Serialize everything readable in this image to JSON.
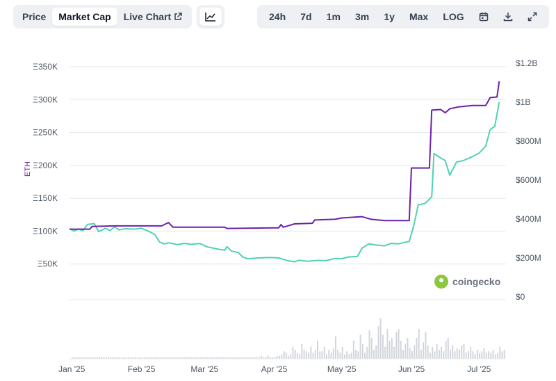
{
  "toolbar": {
    "tabs": [
      {
        "label": "Price",
        "active": false
      },
      {
        "label": "Market Cap",
        "active": true
      },
      {
        "label": "Live Chart",
        "active": false
      }
    ],
    "chart_type_icon": "line-chart-icon",
    "ranges": [
      "24h",
      "7d",
      "1m",
      "3m",
      "1y",
      "Max",
      "LOG"
    ],
    "icons": [
      "calendar-icon",
      "download-icon",
      "expand-icon"
    ]
  },
  "brand": {
    "name": "coingecko",
    "logo_color": "#8dc63f"
  },
  "colors": {
    "eth_line": "#6b21a8",
    "usd_line": "#4fd1b5",
    "volume": "#d1d5db",
    "grid": "#e5e7eb"
  },
  "chart_data": {
    "type": "line",
    "ylabel": "ETH",
    "left_axis": {
      "ticks": [
        "Ξ50K",
        "Ξ100K",
        "Ξ150K",
        "Ξ200K",
        "Ξ250K",
        "Ξ300K",
        "Ξ350K"
      ],
      "values": [
        50000,
        100000,
        150000,
        200000,
        250000,
        300000,
        350000
      ],
      "ylim": [
        0,
        350000
      ]
    },
    "right_axis": {
      "ticks": [
        "$0",
        "$200M",
        "$400M",
        "$600M",
        "$800M",
        "$1B",
        "$1.2B"
      ],
      "values": [
        0,
        200000000,
        400000000,
        600000000,
        800000000,
        1000000000,
        1200000000
      ],
      "ylim": [
        0,
        1200000000
      ]
    },
    "x_ticks": [
      "Jan '25",
      "Feb '25",
      "Mar '25",
      "Apr '25",
      "May '25",
      "Jun '25",
      "Jul '25"
    ],
    "x_range": [
      "2024-12-31",
      "2025-07-13"
    ],
    "grid": true,
    "series": [
      {
        "axis": "left",
        "points": [
          [
            "2024-12-31",
            103000
          ],
          [
            "2025-01-09",
            103000
          ],
          [
            "2025-01-10",
            107000
          ],
          [
            "2025-01-20",
            108000
          ],
          [
            "2025-02-01",
            108000
          ],
          [
            "2025-02-10",
            108000
          ],
          [
            "2025-02-13",
            113000
          ],
          [
            "2025-02-15",
            106000
          ],
          [
            "2025-03-01",
            106000
          ],
          [
            "2025-03-10",
            106000
          ],
          [
            "2025-03-11",
            104000
          ],
          [
            "2025-04-01",
            105000
          ],
          [
            "2025-04-03",
            105000
          ],
          [
            "2025-04-04",
            110000
          ],
          [
            "2025-04-05",
            106000
          ],
          [
            "2025-04-07",
            108000
          ],
          [
            "2025-04-10",
            111000
          ],
          [
            "2025-04-18",
            112000
          ],
          [
            "2025-04-19",
            117000
          ],
          [
            "2025-04-28",
            118000
          ],
          [
            "2025-05-01",
            120000
          ],
          [
            "2025-05-10",
            122000
          ],
          [
            "2025-05-14",
            118000
          ],
          [
            "2025-05-20",
            116000
          ],
          [
            "2025-05-31",
            116000
          ],
          [
            "2025-06-01",
            196000
          ],
          [
            "2025-06-09",
            196000
          ],
          [
            "2025-06-10",
            284000
          ],
          [
            "2025-06-14",
            285000
          ],
          [
            "2025-06-16",
            280000
          ],
          [
            "2025-06-18",
            286000
          ],
          [
            "2025-06-22",
            289000
          ],
          [
            "2025-06-28",
            291000
          ],
          [
            "2025-07-04",
            291000
          ],
          [
            "2025-07-06",
            303000
          ],
          [
            "2025-07-09",
            304000
          ],
          [
            "2025-07-10",
            328000
          ]
        ]
      },
      {
        "axis": "right",
        "points": [
          [
            "2024-12-31",
            350000000
          ],
          [
            "2025-01-02",
            338000000
          ],
          [
            "2025-01-04",
            348000000
          ],
          [
            "2025-01-06",
            340000000
          ],
          [
            "2025-01-08",
            372000000
          ],
          [
            "2025-01-11",
            376000000
          ],
          [
            "2025-01-13",
            335000000
          ],
          [
            "2025-01-16",
            352000000
          ],
          [
            "2025-01-18",
            340000000
          ],
          [
            "2025-01-20",
            360000000
          ],
          [
            "2025-01-22",
            344000000
          ],
          [
            "2025-01-25",
            350000000
          ],
          [
            "2025-01-29",
            348000000
          ],
          [
            "2025-02-01",
            352000000
          ],
          [
            "2025-02-04",
            338000000
          ],
          [
            "2025-02-07",
            320000000
          ],
          [
            "2025-02-09",
            282000000
          ],
          [
            "2025-02-11",
            272000000
          ],
          [
            "2025-02-13",
            278000000
          ],
          [
            "2025-02-17",
            268000000
          ],
          [
            "2025-02-20",
            275000000
          ],
          [
            "2025-02-23",
            270000000
          ],
          [
            "2025-02-27",
            274000000
          ],
          [
            "2025-03-02",
            258000000
          ],
          [
            "2025-03-05",
            250000000
          ],
          [
            "2025-03-08",
            243000000
          ],
          [
            "2025-03-10",
            240000000
          ],
          [
            "2025-03-11",
            258000000
          ],
          [
            "2025-03-13",
            235000000
          ],
          [
            "2025-03-16",
            228000000
          ],
          [
            "2025-03-18",
            205000000
          ],
          [
            "2025-03-20",
            196000000
          ],
          [
            "2025-03-25",
            200000000
          ],
          [
            "2025-03-30",
            202000000
          ],
          [
            "2025-04-03",
            200000000
          ],
          [
            "2025-04-07",
            186000000
          ],
          [
            "2025-04-10",
            180000000
          ],
          [
            "2025-04-12",
            188000000
          ],
          [
            "2025-04-16",
            183000000
          ],
          [
            "2025-04-20",
            187000000
          ],
          [
            "2025-04-24",
            186000000
          ],
          [
            "2025-04-28",
            197000000
          ],
          [
            "2025-05-01",
            196000000
          ],
          [
            "2025-05-04",
            205000000
          ],
          [
            "2025-05-08",
            208000000
          ],
          [
            "2025-05-10",
            250000000
          ],
          [
            "2025-05-13",
            272000000
          ],
          [
            "2025-05-16",
            267000000
          ],
          [
            "2025-05-20",
            262000000
          ],
          [
            "2025-05-23",
            275000000
          ],
          [
            "2025-05-26",
            272000000
          ],
          [
            "2025-05-31",
            285000000
          ],
          [
            "2025-06-02",
            365000000
          ],
          [
            "2025-06-04",
            473000000
          ],
          [
            "2025-06-07",
            480000000
          ],
          [
            "2025-06-10",
            514000000
          ],
          [
            "2025-06-11",
            736000000
          ],
          [
            "2025-06-14",
            714000000
          ],
          [
            "2025-06-16",
            700000000
          ],
          [
            "2025-06-18",
            625000000
          ],
          [
            "2025-06-21",
            692000000
          ],
          [
            "2025-06-24",
            700000000
          ],
          [
            "2025-06-28",
            720000000
          ],
          [
            "2025-07-01",
            738000000
          ],
          [
            "2025-07-04",
            775000000
          ],
          [
            "2025-07-06",
            860000000
          ],
          [
            "2025-07-08",
            875000000
          ],
          [
            "2025-07-10",
            1000000000
          ]
        ]
      }
    ],
    "volume": {
      "x_range": [
        "2025-01-01",
        "2025-07-13"
      ],
      "values": [
        1,
        1,
        1,
        1,
        1,
        1,
        1,
        1,
        1,
        1,
        1,
        1,
        1,
        1,
        1,
        1,
        1,
        1,
        1,
        1,
        1,
        1,
        1,
        1,
        1,
        1,
        1,
        1,
        1,
        1,
        1,
        1,
        1,
        1,
        1,
        1,
        1,
        1,
        1,
        1,
        1,
        1,
        1,
        1,
        1,
        1,
        1,
        1,
        1,
        1,
        1,
        1,
        1,
        1,
        1,
        1,
        1,
        1,
        1,
        1,
        1,
        1,
        1,
        1,
        1,
        1,
        1,
        1,
        1,
        1,
        1,
        1,
        1,
        1,
        1,
        1,
        1,
        1,
        1,
        1,
        1,
        1,
        1,
        1,
        2,
        1,
        1,
        2,
        1,
        1,
        1,
        2,
        2,
        3,
        5,
        4,
        2,
        3,
        8,
        6,
        4,
        3,
        10,
        6,
        5,
        4,
        8,
        4,
        6,
        12,
        5,
        5,
        8,
        3,
        6,
        4,
        7,
        15,
        6,
        4,
        8,
        3,
        5,
        3,
        4,
        12,
        6,
        5,
        16,
        10,
        4,
        8,
        19,
        14,
        6,
        9,
        22,
        27,
        16,
        8,
        20,
        12,
        14,
        8,
        18,
        20,
        12,
        6,
        10,
        14,
        7,
        5,
        9,
        14,
        20,
        6,
        11,
        18,
        9,
        4,
        8,
        5,
        10,
        6,
        8,
        5,
        12,
        14,
        6,
        9,
        5,
        7,
        6,
        9,
        10,
        4,
        5,
        8,
        5,
        3,
        6,
        4,
        5,
        7,
        4,
        5,
        4,
        6,
        3,
        4,
        8,
        5,
        6
      ]
    }
  }
}
